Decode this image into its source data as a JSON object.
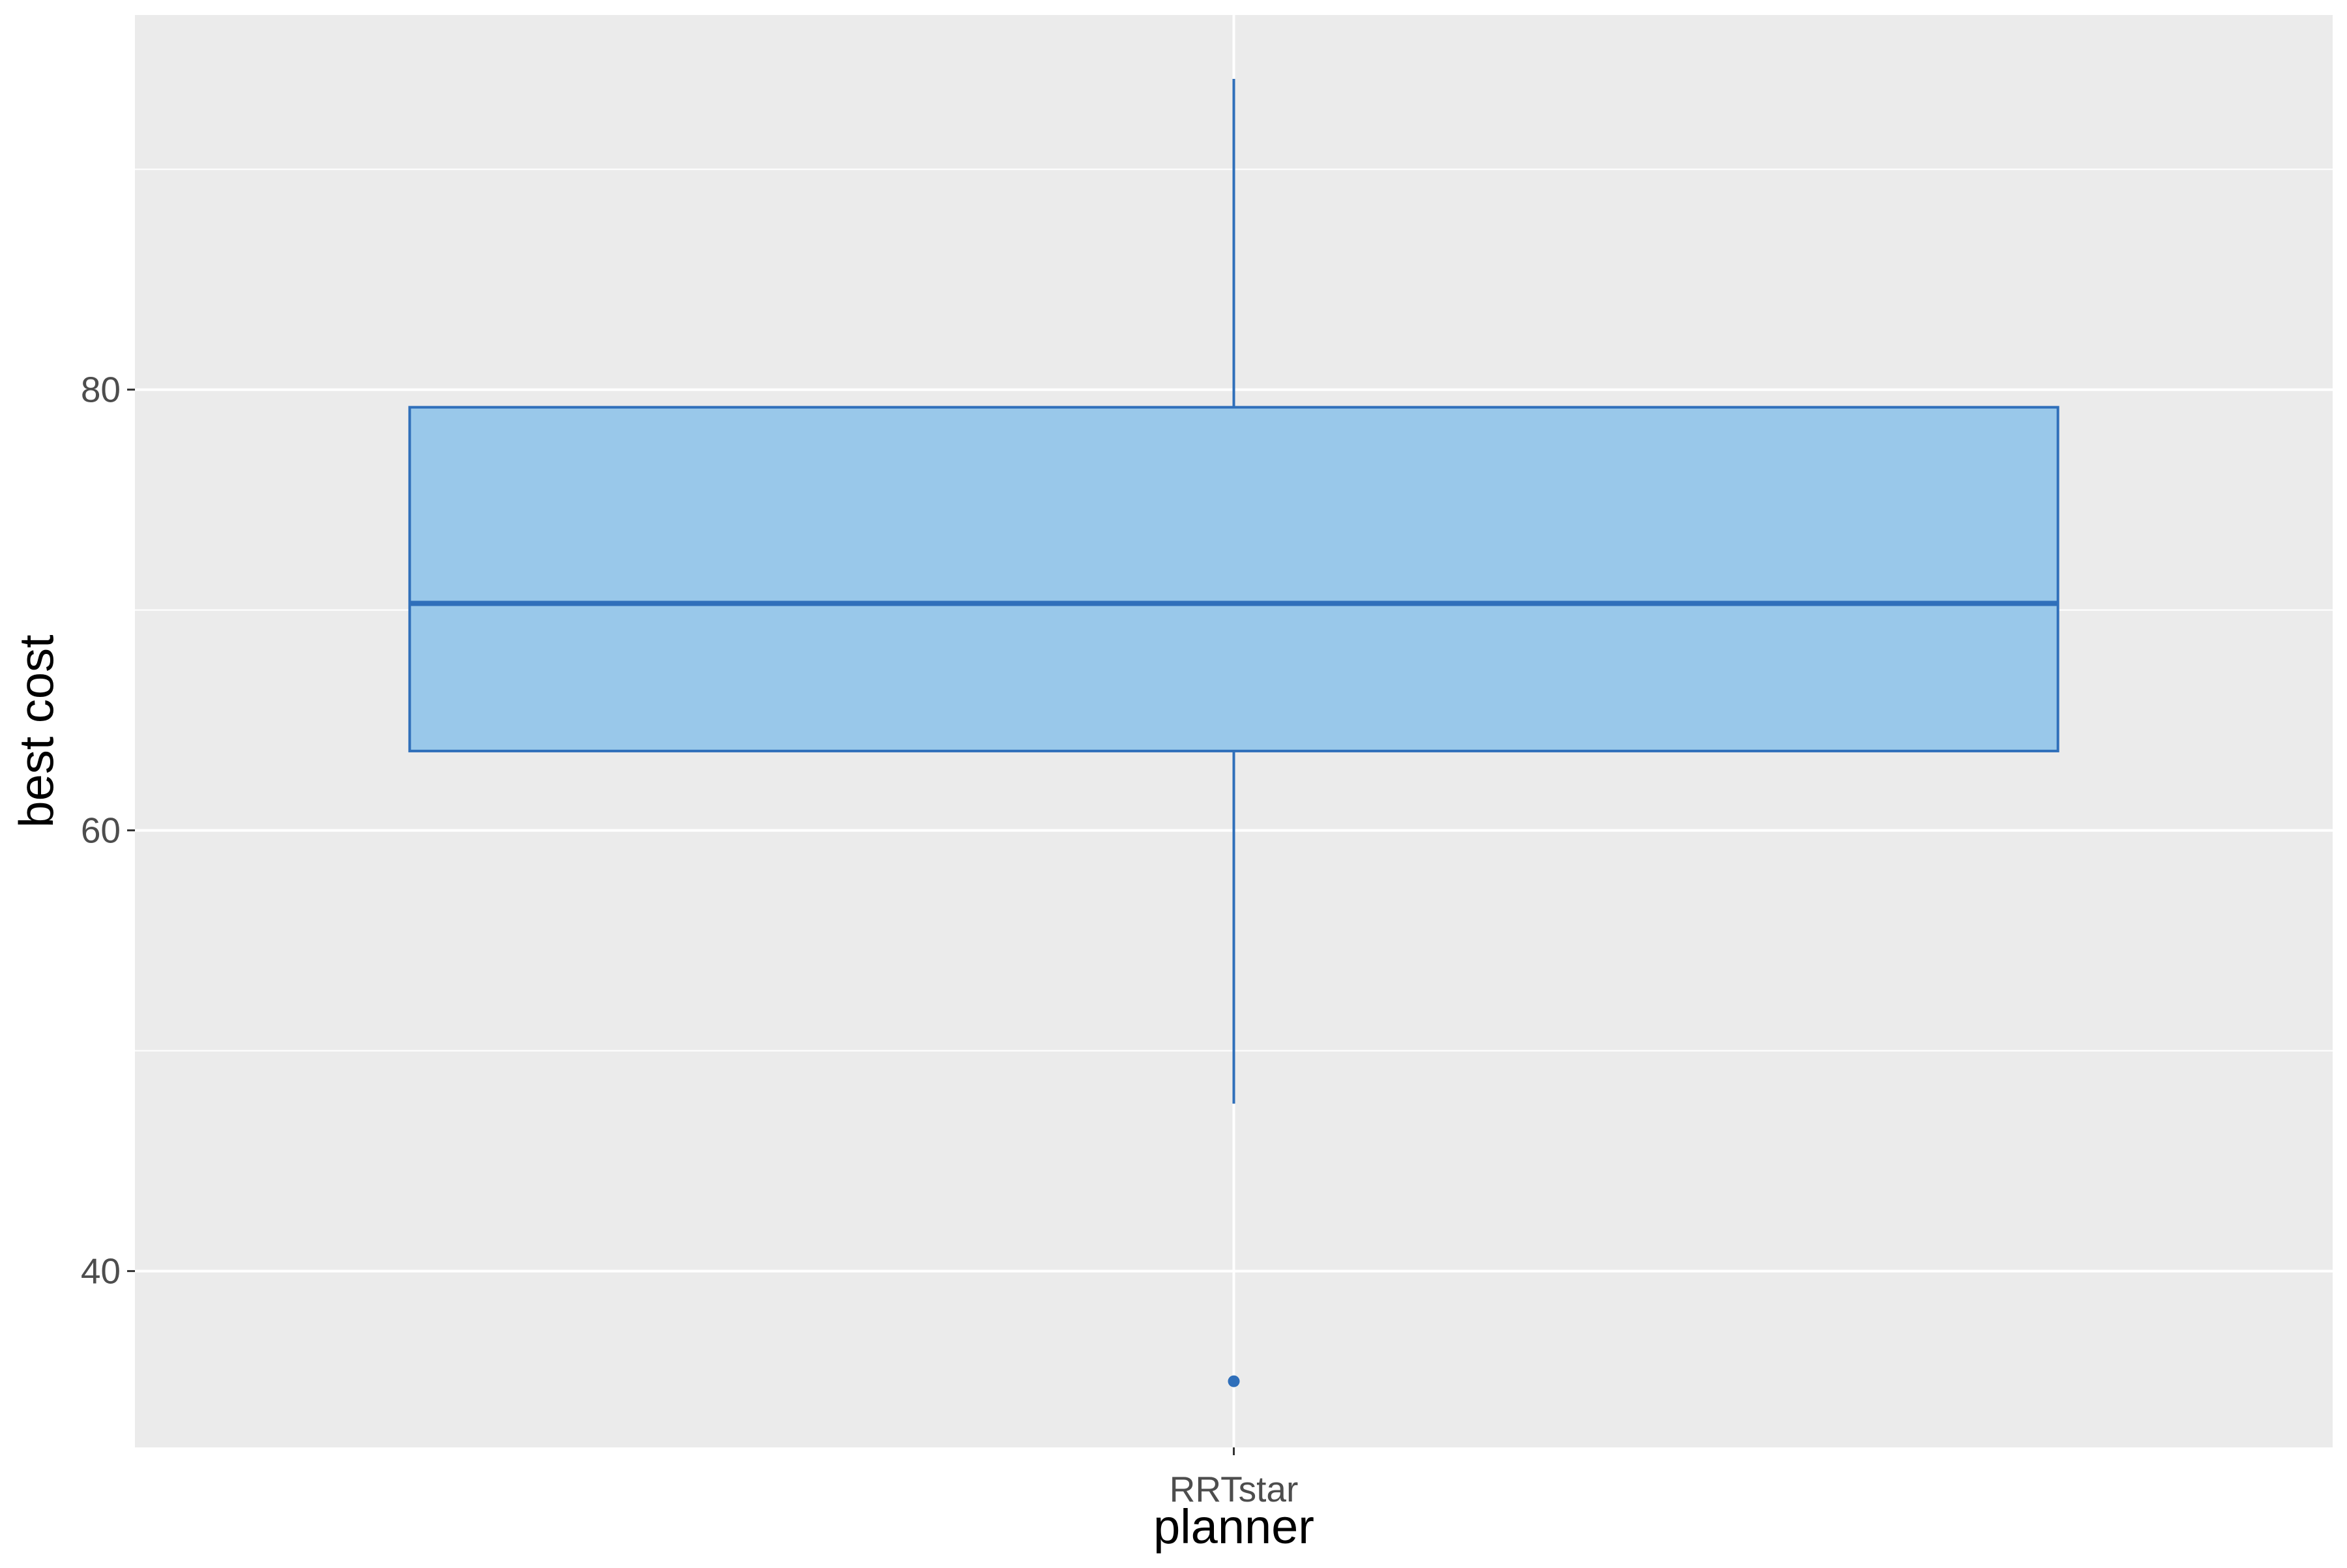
{
  "chart_data": {
    "type": "boxplot",
    "xlabel": "planner",
    "ylabel": "best cost",
    "categories": [
      "RRTstar"
    ],
    "boxes": [
      {
        "category": "RRTstar",
        "whisker_low": 47.6,
        "q1": 63.6,
        "median": 70.3,
        "q3": 79.2,
        "whisker_high": 94.1,
        "outliers": [
          35.0
        ]
      }
    ],
    "ylim": [
      32.0,
      97.0
    ],
    "y_ticks": [
      40,
      60,
      80
    ],
    "y_minor_ticks": [
      50,
      70,
      90
    ],
    "grid": true,
    "legend": "none",
    "colors": {
      "panel_background": "#ebebeb",
      "grid_line": "#ffffff",
      "box_fill": "#99c8ea",
      "box_stroke": "#2f6fba",
      "tick_text": "#4d4d4d",
      "tick_mark": "#333333",
      "axis_title": "#000000"
    }
  }
}
